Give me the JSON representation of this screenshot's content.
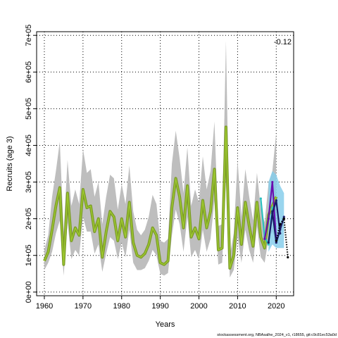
{
  "chart_data": {
    "type": "line",
    "title": "",
    "xlabel": "Years",
    "ylabel": "Recruits (age 3)",
    "annotation": "-0.12",
    "credit": "stockassessment.org, NBAsalhe_2024_v1, r18655, git:c9c81ec53a0d",
    "xlim": [
      1958,
      2024.5
    ],
    "ylim": [
      -10000,
      710000
    ],
    "xticks": [
      1960,
      1970,
      1980,
      1990,
      2000,
      2010,
      2020
    ],
    "xtick_labels": [
      "1960",
      "1970",
      "1980",
      "1990",
      "2000",
      "2010",
      "2020"
    ],
    "yticks": [
      0,
      100000,
      200000,
      300000,
      400000,
      500000,
      600000,
      700000
    ],
    "ytick_labels": [
      "0e+00",
      "1e+05",
      "2e+05",
      "3e+05",
      "4e+05",
      "5e+05",
      "6e+05",
      "7e+05"
    ],
    "grid": true,
    "grid_style": "dotted",
    "colors": {
      "confidence_band": "#bebebe",
      "peel_band": "#87ceeb",
      "main_line": "#7a9a26",
      "main_line_inner": "#9dc82f",
      "peel_line": "#1a1a66",
      "peel_dots": "#000000",
      "peel_alt": "#6a0dad",
      "peel_cyan": "#2bbfbf"
    },
    "years": [
      1960,
      1961,
      1962,
      1963,
      1964,
      1965,
      1966,
      1967,
      1968,
      1969,
      1970,
      1971,
      1972,
      1973,
      1974,
      1975,
      1976,
      1977,
      1978,
      1979,
      1980,
      1981,
      1982,
      1983,
      1984,
      1985,
      1986,
      1987,
      1988,
      1989,
      1990,
      1991,
      1992,
      1993,
      1994,
      1995,
      1996,
      1997,
      1998,
      1999,
      2000,
      2001,
      2002,
      2003,
      2004,
      2005,
      2006,
      2007,
      2008,
      2009,
      2010,
      2011,
      2012,
      2013,
      2014,
      2015,
      2016,
      2017,
      2018,
      2019,
      2020
    ],
    "estimate": [
      85000,
      110000,
      170000,
      235000,
      285000,
      75000,
      270000,
      140000,
      175000,
      155000,
      280000,
      230000,
      235000,
      165000,
      200000,
      95000,
      165000,
      220000,
      205000,
      140000,
      200000,
      150000,
      245000,
      135000,
      100000,
      95000,
      105000,
      130000,
      175000,
      155000,
      80000,
      75000,
      85000,
      230000,
      310000,
      260000,
      175000,
      290000,
      150000,
      175000,
      145000,
      250000,
      175000,
      220000,
      335000,
      115000,
      120000,
      450000,
      65000,
      100000,
      230000,
      130000,
      245000,
      180000,
      125000,
      245000,
      150000,
      120000,
      210000,
      235000,
      260000
    ],
    "upper": [
      115000,
      155000,
      260000,
      330000,
      410000,
      165000,
      360000,
      235000,
      280000,
      240000,
      390000,
      325000,
      335000,
      260000,
      300000,
      185000,
      260000,
      320000,
      310000,
      225000,
      295000,
      240000,
      345000,
      220000,
      170000,
      155000,
      170000,
      205000,
      265000,
      240000,
      140000,
      135000,
      145000,
      350000,
      440000,
      365000,
      270000,
      395000,
      235000,
      280000,
      245000,
      370000,
      280000,
      330000,
      465000,
      180000,
      185000,
      685000,
      100000,
      160000,
      360000,
      205000,
      335000,
      260000,
      195000,
      325000,
      230000,
      190000,
      295000,
      330000,
      435000
    ],
    "lower": [
      60000,
      80000,
      110000,
      160000,
      195000,
      45000,
      190000,
      90000,
      115000,
      100000,
      205000,
      165000,
      165000,
      105000,
      130000,
      55000,
      105000,
      150000,
      140000,
      90000,
      135000,
      95000,
      170000,
      80000,
      60000,
      60000,
      65000,
      85000,
      115000,
      100000,
      50000,
      45000,
      52000,
      155000,
      225000,
      185000,
      110000,
      205000,
      95000,
      115000,
      90000,
      170000,
      110000,
      145000,
      250000,
      75000,
      80000,
      305000,
      40000,
      60000,
      150000,
      80000,
      170000,
      115000,
      80000,
      180000,
      95000,
      80000,
      145000,
      165000,
      140000
    ],
    "peels": [
      {
        "years": [
          2016,
          2017,
          2018,
          2019,
          2020
        ],
        "values": [
          255000,
          150000,
          130000,
          230000,
          240000
        ],
        "color": "peel_cyan"
      },
      {
        "years": [
          2017,
          2018,
          2019,
          2020
        ],
        "values": [
          145000,
          200000,
          300000,
          140000
        ],
        "color": "peel_alt"
      },
      {
        "years": [
          2018,
          2019,
          2020,
          2021
        ],
        "values": [
          135000,
          215000,
          250000,
          160000
        ],
        "color": "peel_line"
      },
      {
        "years": [
          2019,
          2020,
          2021,
          2022
        ],
        "values": [
          220000,
          135000,
          170000,
          205000
        ],
        "color": "peel_line"
      },
      {
        "years": [
          2020,
          2021,
          2022,
          2023
        ],
        "values": [
          140000,
          185000,
          200000,
          95000
        ],
        "color": "peel_dots"
      }
    ],
    "peel_band": {
      "years": [
        2018,
        2019,
        2020,
        2021,
        2022
      ],
      "upper": [
        300000,
        330000,
        320000,
        290000,
        270000
      ],
      "lower": [
        110000,
        130000,
        120000,
        120000,
        120000
      ]
    }
  }
}
